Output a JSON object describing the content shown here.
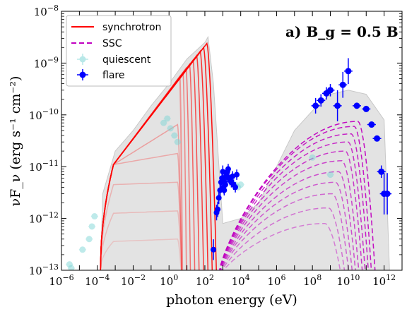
{
  "chart_data": {
    "type": "line",
    "annotation": "a) B_g = 0.5 B",
    "xlabel": "photon energy (eV)",
    "ylabel": "νF_ν (erg s⁻¹ cm⁻²)",
    "xscale": "log",
    "yscale": "log",
    "xlim": [
      1e-06,
      10000000000000.0
    ],
    "ylim": [
      1e-13,
      1e-08
    ],
    "grid": false,
    "legend_position": "top-left",
    "x_tick_labels": [
      "10^-6",
      "10^-4",
      "10^-2",
      "10^0",
      "10^2",
      "10^4",
      "10^6",
      "10^8",
      "10^10",
      "10^12"
    ],
    "y_tick_labels": [
      "10^-13",
      "10^-12",
      "10^-11",
      "10^-10",
      "10^-9",
      "10^-8"
    ],
    "legend": [
      {
        "label": "synchrotron",
        "style": "solid-line",
        "color": "#ff0000"
      },
      {
        "label": "SSC",
        "style": "dashed-line",
        "color": "#c000c0"
      },
      {
        "label": "quiescent",
        "style": "errorbar-marker",
        "color": "#7fd6d6"
      },
      {
        "label": "flare",
        "style": "errorbar-marker",
        "color": "#0000ff"
      }
    ],
    "envelope": {
      "color": "#d9d9d9",
      "x": [
        0.00015,
        0.0002,
        0.001,
        0.01,
        0.1,
        1,
        10,
        100,
        150,
        300,
        1000,
        10000,
        100000,
        1000000,
        10000000,
        100000000,
        1000000000,
        10000000000,
        100000000000,
        1000000000000,
        2000000000000
      ],
      "y": [
        1e-13,
        3e-12,
        2e-11,
        5e-11,
        1.5e-10,
        4e-10,
        1.2e-09,
        2.5e-09,
        3.2e-09,
        4e-10,
        8e-13,
        1e-12,
        2e-12,
        1e-11,
        5e-11,
        1.2e-10,
        2.5e-10,
        3e-10,
        2.5e-10,
        8e-11,
        1e-13
      ]
    },
    "synchrotron_curves": {
      "color": "#ff0000",
      "low_energy_cutoff": 0.00015,
      "rise_end": 0.0008,
      "rise_end_value": 1.1e-11,
      "peaks": [
        {
          "x": 4.0,
          "y": 5.5e-10
        },
        {
          "x": 6.0,
          "y": 6.5e-10
        },
        {
          "x": 9.0,
          "y": 8e-10
        },
        {
          "x": 14.0,
          "y": 9.5e-10
        },
        {
          "x": 22.0,
          "y": 1.15e-09
        },
        {
          "x": 35.0,
          "y": 1.4e-09
        },
        {
          "x": 55.0,
          "y": 1.7e-09
        },
        {
          "x": 85.0,
          "y": 2e-09
        },
        {
          "x": 130.0,
          "y": 2.4e-09
        },
        {
          "x": 3.0,
          "y": 6.5e-11
        },
        {
          "x": 3.0,
          "y": 1.8e-11
        },
        {
          "x": 3.0,
          "y": 5e-12
        },
        {
          "x": 3.0,
          "y": 1.4e-12
        },
        {
          "x": 3.0,
          "y": 4e-13
        }
      ]
    },
    "ssc_curves": {
      "color": "#c000c0",
      "onset": 500,
      "onset_value": 1e-13,
      "peaks": [
        {
          "x": 500000000,
          "y": 8e-13
        },
        {
          "x": 800000000,
          "y": 1.6e-12
        },
        {
          "x": 1300000000,
          "y": 3e-12
        },
        {
          "x": 2000000000,
          "y": 5e-12
        },
        {
          "x": 3000000000,
          "y": 8e-12
        },
        {
          "x": 4500000000,
          "y": 1.3e-11
        },
        {
          "x": 7000000000,
          "y": 2e-11
        },
        {
          "x": 10000000000,
          "y": 3e-11
        },
        {
          "x": 15000000000,
          "y": 4.3e-11
        },
        {
          "x": 22000000000,
          "y": 6e-11
        },
        {
          "x": 35000000000,
          "y": 7.5e-11
        }
      ]
    },
    "quiescent_points": {
      "color": "#7fd6d6",
      "x": [
        2.8e-06,
        3.5e-06,
        1.5e-05,
        3.5e-05,
        5e-05,
        7e-05,
        0.5,
        0.8,
        1.2,
        2.0,
        3.0,
        5000,
        7000,
        10000,
        100000000,
        1000000000
      ],
      "y": [
        1.3e-13,
        1.1e-13,
        2.5e-13,
        4e-13,
        7e-13,
        1.1e-12,
        7e-11,
        8.5e-11,
        5.5e-11,
        4e-11,
        3e-11,
        4.5e-12,
        4e-12,
        4.5e-12,
        1.5e-11,
        7e-12
      ]
    },
    "flare_points": {
      "color": "#0000ff",
      "x": [
        300,
        450,
        520,
        600,
        700,
        800,
        900,
        1000,
        1100,
        1200,
        1300,
        1400,
        1500,
        1600,
        1800,
        2000,
        2200,
        2500,
        3000,
        3500,
        4000,
        5000,
        6000,
        150000000,
        300000000,
        600000000,
        1000000000,
        2500000000,
        5000000000,
        10000000000,
        30000000000,
        100000000000,
        200000000000,
        400000000000,
        700000000000,
        1000000000000,
        1500000000000
      ],
      "y": [
        2.5e-13,
        1.3e-12,
        1.5e-12,
        2.5e-12,
        3.5e-12,
        5e-12,
        6e-12,
        8e-12,
        4e-12,
        3.5e-12,
        5e-12,
        4.5e-12,
        6.5e-12,
        7e-12,
        8e-12,
        9e-12,
        6e-12,
        5.5e-12,
        5e-12,
        6.5e-12,
        4.5e-12,
        4e-12,
        7e-12,
        1.5e-10,
        1.9e-10,
        2.6e-10,
        3e-10,
        1.5e-10,
        3.8e-10,
        7e-10,
        1.5e-10,
        1.3e-10,
        6.5e-11,
        3.5e-11,
        8e-12,
        3e-12,
        3e-12
      ],
      "err": [
        0.2,
        0.15,
        0.15,
        0.12,
        0.12,
        0.12,
        0.12,
        0.12,
        0.12,
        0.1,
        0.1,
        0.1,
        0.1,
        0.1,
        0.1,
        0.1,
        0.1,
        0.1,
        0.1,
        0.1,
        0.1,
        0.1,
        0.1,
        0.15,
        0.12,
        0.12,
        0.12,
        0.3,
        0.25,
        0.25,
        0.05,
        0.05,
        0.05,
        0.05,
        0.12,
        0.4,
        0.4
      ]
    }
  }
}
